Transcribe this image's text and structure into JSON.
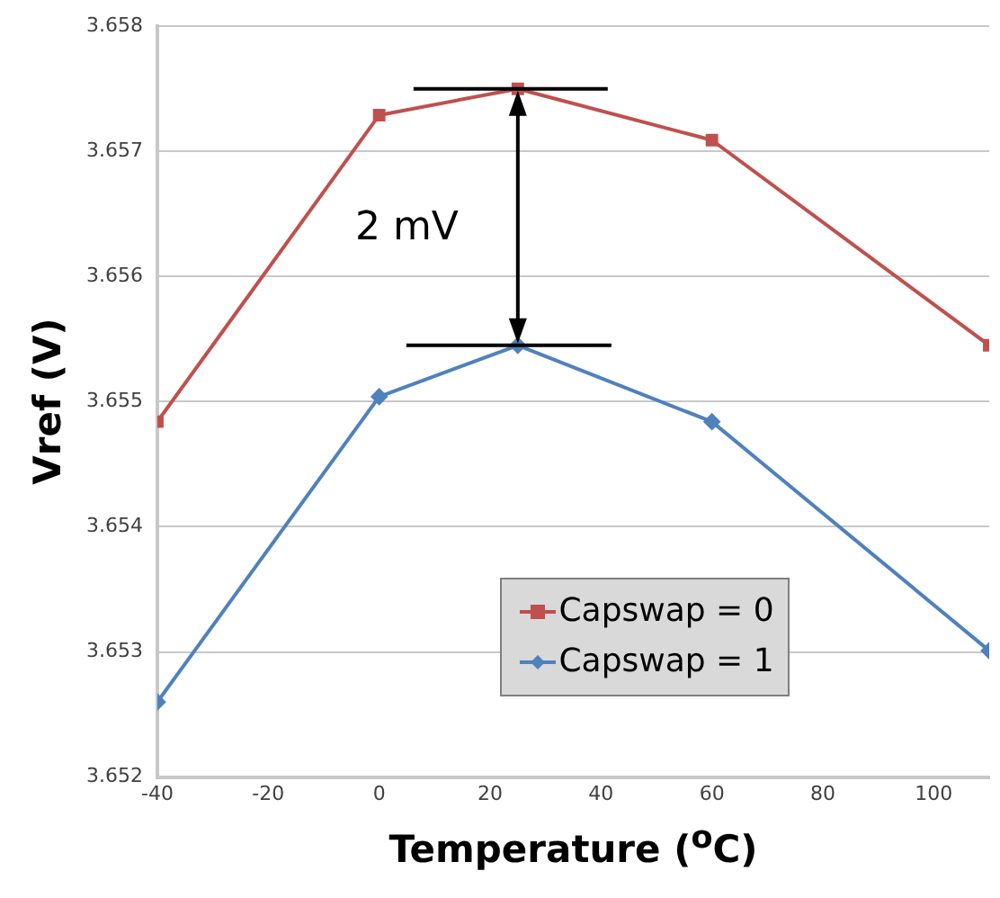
{
  "chart_data": {
    "type": "line",
    "xlabel": "Temperature ($^{o}$C)",
    "ylabel": "Vref (V)",
    "x": [
      -40,
      0,
      25,
      60,
      110
    ],
    "series": [
      {
        "name": "Capswap = 0",
        "color": "#c0504d",
        "marker": "square",
        "values": [
          3.65484,
          3.65729,
          3.6575,
          3.65709,
          3.65545
        ]
      },
      {
        "name": "Capswap = 1",
        "color": "#4f81bd",
        "marker": "diamond",
        "values": [
          3.6526,
          3.65504,
          3.65545,
          3.65484,
          3.65301
        ]
      }
    ],
    "xlim": [
      -40,
      110
    ],
    "xticks": [
      -40,
      -20,
      0,
      20,
      40,
      60,
      80,
      100
    ],
    "ylim": [
      3.652,
      3.658
    ],
    "yticks": [
      3.652,
      3.653,
      3.654,
      3.655,
      3.656,
      3.657,
      3.658
    ],
    "grid": "y",
    "legend": "bottom",
    "line_style": "solid",
    "annotations": [
      "2 mV"
    ]
  }
}
